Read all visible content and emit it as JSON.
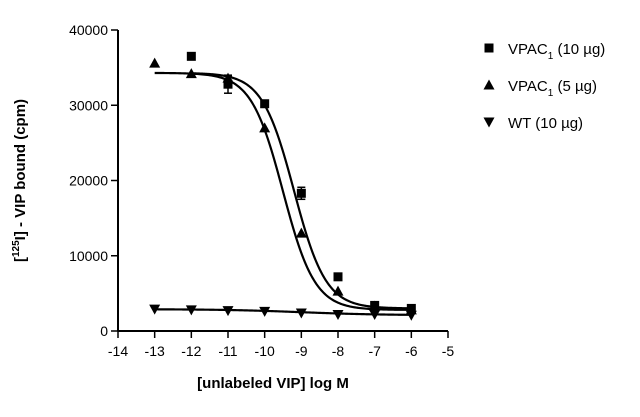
{
  "chart_data": {
    "type": "scatter",
    "title": "",
    "xlabel": "[unlabeled VIP] log M",
    "ylabel": "[125I] - VIP bound (cpm)",
    "ylabel_parts": {
      "pre": "[",
      "sup": "125",
      "post": "I] - VIP bound (cpm)"
    },
    "xlim": [
      -14,
      -5
    ],
    "ylim": [
      0,
      40000
    ],
    "xticks": [
      -14,
      -13,
      -12,
      -11,
      -10,
      -9,
      -8,
      -7,
      -6,
      -5
    ],
    "yticks": [
      0,
      10000,
      20000,
      30000,
      40000
    ],
    "grid": false,
    "legend_position": "right",
    "series": [
      {
        "name": "VPAC1 (10 µg)",
        "name_parts": {
          "base": "VPAC",
          "sub": "1",
          "rest": " (10 µg)"
        },
        "marker": "square",
        "x": [
          -12,
          -11,
          -10,
          -9,
          -8,
          -7,
          -6
        ],
        "y": [
          36500,
          32800,
          30200,
          18300,
          7200,
          3400,
          3000
        ],
        "yerr": [
          0,
          1200,
          400,
          800,
          300,
          200,
          200
        ],
        "fit": {
          "top": 34300,
          "bottom": 3000,
          "logEC50": -9.2,
          "hill": -1.0
        }
      },
      {
        "name": "VPAC1 (5 µg)",
        "name_parts": {
          "base": "VPAC",
          "sub": "1",
          "rest": " (5 µg)"
        },
        "marker": "triangle-up",
        "x": [
          -13,
          -12,
          -11,
          -10,
          -9,
          -8,
          -7,
          -6
        ],
        "y": [
          35600,
          34200,
          33600,
          27000,
          13000,
          5300,
          3300,
          2800
        ],
        "yerr": [
          0,
          0,
          300,
          0,
          0,
          0,
          0,
          0
        ],
        "fit": {
          "top": 34300,
          "bottom": 2800,
          "logEC50": -9.5,
          "hill": -1.0
        }
      },
      {
        "name": "WT (10 µg)",
        "name_parts": {
          "base": "WT",
          "sub": "",
          "rest": " (10 µg)"
        },
        "marker": "triangle-down",
        "x": [
          -13,
          -12,
          -11,
          -10,
          -9,
          -8,
          -7,
          -6
        ],
        "y": [
          2900,
          2800,
          2700,
          2600,
          2400,
          2200,
          2200,
          2100
        ],
        "yerr": [
          0,
          0,
          0,
          0,
          0,
          0,
          0,
          0
        ],
        "fit": {
          "top": 2900,
          "bottom": 2100,
          "logEC50": -9.0,
          "hill": -0.4
        }
      }
    ]
  }
}
